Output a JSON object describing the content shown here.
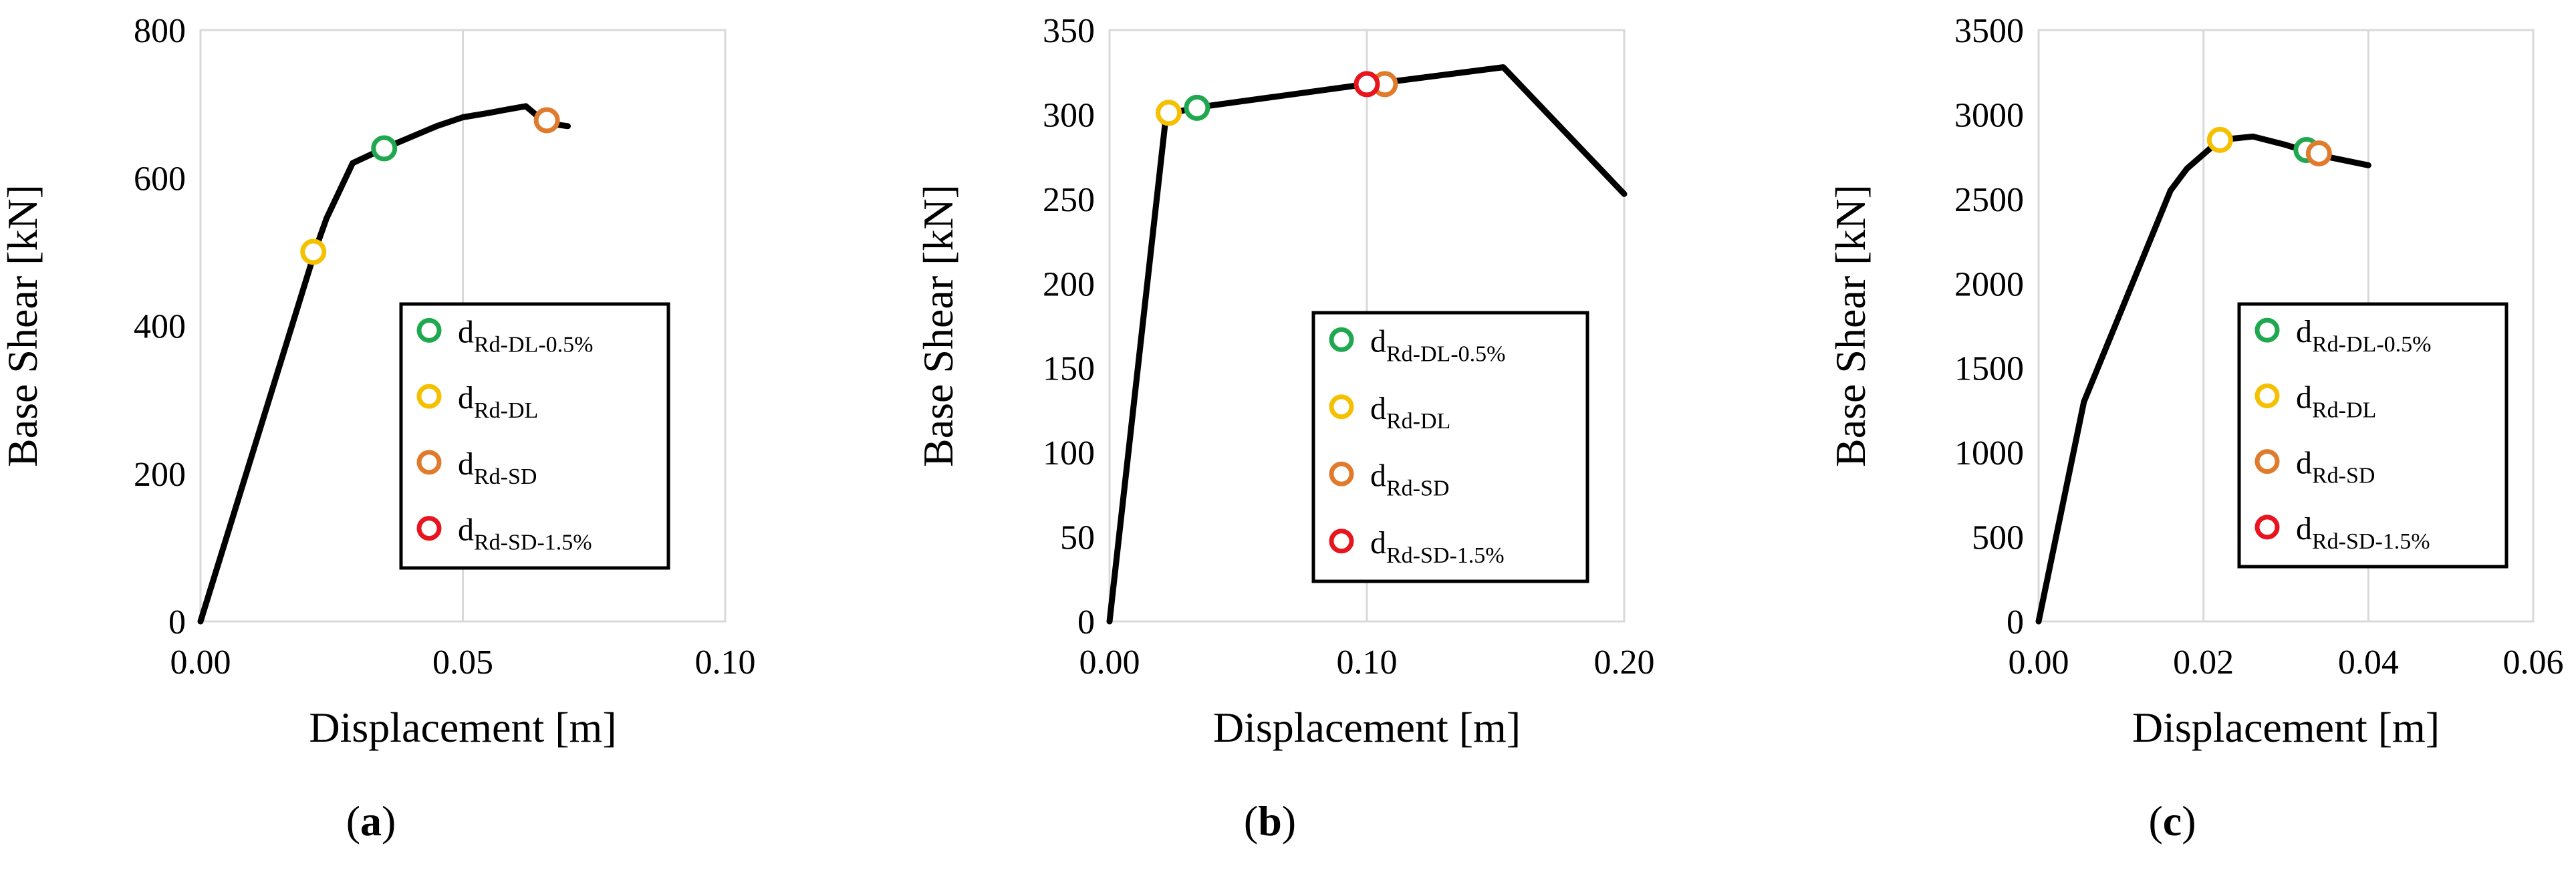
{
  "chart_data": [
    {
      "type": "line",
      "panel_label": "a",
      "xlabel": "Displacement [m]",
      "ylabel": "Base Shear [kN]",
      "xlim": [
        0,
        0.1
      ],
      "ylim": [
        0,
        800
      ],
      "xticks": [
        0,
        0.05,
        0.1
      ],
      "xtick_labels": [
        "0.00",
        "0.05",
        "0.10"
      ],
      "yticks": [
        0,
        200,
        400,
        600,
        800
      ],
      "ytick_labels": [
        "0",
        "200",
        "400",
        "600",
        "800"
      ],
      "grid": true,
      "legend_position": "bottom-right",
      "curve": {
        "x": [
          0,
          0.022,
          0.024,
          0.029,
          0.035,
          0.04,
          0.045,
          0.05,
          0.055,
          0.058,
          0.062,
          0.064,
          0.067,
          0.068,
          0.07
        ],
        "y": [
          0,
          505,
          545,
          620,
          640,
          655,
          670,
          682,
          688,
          692,
          697,
          685,
          678,
          672,
          670
        ]
      },
      "markers": [
        {
          "key": "rd_dl_05",
          "x": 0.035,
          "y": 640
        },
        {
          "key": "rd_dl",
          "x": 0.0215,
          "y": 500
        },
        {
          "key": "rd_sd",
          "x": 0.066,
          "y": 678
        }
      ]
    },
    {
      "type": "line",
      "panel_label": "b",
      "xlabel": "Displacement [m]",
      "ylabel": "Base Shear [kN]",
      "xlim": [
        0,
        0.2
      ],
      "ylim": [
        0,
        350
      ],
      "xticks": [
        0,
        0.1,
        0.2
      ],
      "xtick_labels": [
        "0.00",
        "0.10",
        "0.20"
      ],
      "yticks": [
        0,
        50,
        100,
        150,
        200,
        250,
        300,
        350
      ],
      "ytick_labels": [
        "0",
        "50",
        "100",
        "150",
        "200",
        "250",
        "300",
        "350"
      ],
      "grid": true,
      "legend_position": "bottom-right",
      "curve": {
        "x": [
          0,
          0.022,
          0.033,
          0.1,
          0.107,
          0.153,
          0.2
        ],
        "y": [
          0,
          300,
          304,
          318,
          319,
          328,
          253
        ]
      },
      "markers": [
        {
          "key": "rd_dl",
          "x": 0.023,
          "y": 301
        },
        {
          "key": "rd_dl_05",
          "x": 0.034,
          "y": 304
        },
        {
          "key": "rd_sd",
          "x": 0.107,
          "y": 318
        },
        {
          "key": "rd_sd_15",
          "x": 0.1,
          "y": 318
        }
      ]
    },
    {
      "type": "line",
      "panel_label": "c",
      "xlabel": "Displacement [m]",
      "ylabel": "Base Shear [kN]",
      "xlim": [
        0,
        0.06
      ],
      "ylim": [
        0,
        3500
      ],
      "xticks": [
        0,
        0.02,
        0.04,
        0.06
      ],
      "xtick_labels": [
        "0.00",
        "0.02",
        "0.04",
        "0.06"
      ],
      "yticks": [
        0,
        500,
        1000,
        1500,
        2000,
        2500,
        3000,
        3500
      ],
      "ytick_labels": [
        "0",
        "500",
        "1000",
        "1500",
        "2000",
        "2500",
        "3000",
        "3500"
      ],
      "grid": true,
      "legend_position": "bottom-right",
      "curve": {
        "x": [
          0,
          0.0055,
          0.016,
          0.018,
          0.022,
          0.026,
          0.03,
          0.034,
          0.04
        ],
        "y": [
          0,
          1300,
          2550,
          2680,
          2850,
          2870,
          2820,
          2760,
          2700
        ]
      },
      "markers": [
        {
          "key": "rd_dl",
          "x": 0.022,
          "y": 2850
        },
        {
          "key": "rd_dl_05",
          "x": 0.0325,
          "y": 2790
        },
        {
          "key": "rd_sd",
          "x": 0.034,
          "y": 2770
        }
      ]
    }
  ],
  "legend": [
    {
      "key": "rd_dl_05",
      "main": "d",
      "sub": "Rd-DL-0.5%",
      "color": "#1fa84f"
    },
    {
      "key": "rd_dl",
      "main": "d",
      "sub": "Rd-DL",
      "color": "#f5c000"
    },
    {
      "key": "rd_sd",
      "main": "d",
      "sub": "Rd-SD",
      "color": "#e07b2e"
    },
    {
      "key": "rd_sd_15",
      "main": "d",
      "sub": "Rd-SD-1.5%",
      "color": "#e8141e"
    }
  ]
}
